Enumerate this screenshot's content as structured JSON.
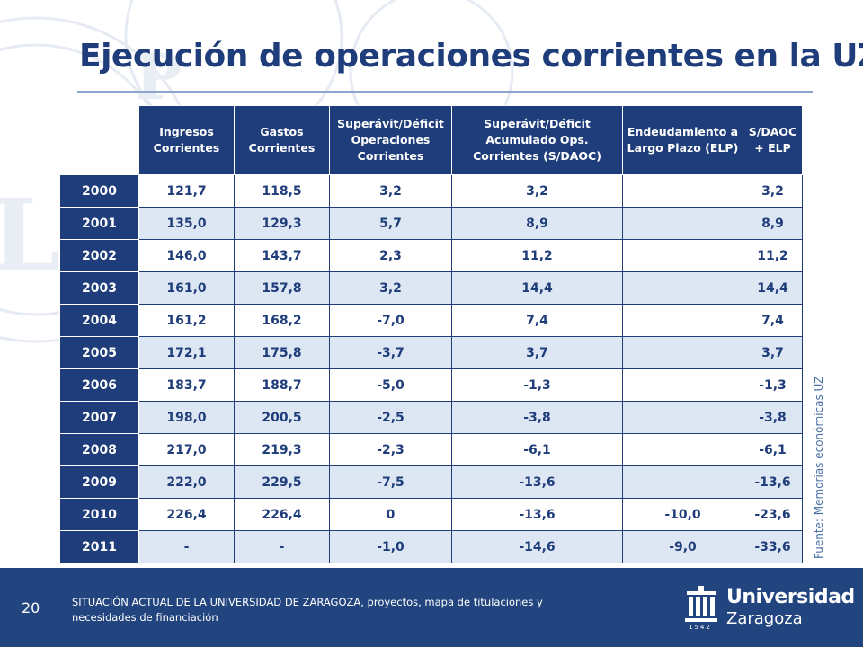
{
  "slide": {
    "title": "Ejecución de operaciones corrientes en la UZ",
    "page_number": "20",
    "footer_text": "SITUACIÓN ACTUAL DE LA UNIVERSIDAD DE ZARAGOZA, proyectos, mapa de titulaciones y necesidades de financiación",
    "source_note": "Fuente: Memorias económicas UZ"
  },
  "logo": {
    "name": "Universidad",
    "city": "Zaragoza",
    "year": "1542"
  },
  "table": {
    "headers": [
      "Ingresos Corrientes",
      "Gastos Corrientes",
      "Superávit/Déficit Operaciones Corrientes",
      "Superávit/Déficit Acumulado Ops. Corrientes (S/DAOC)",
      "Endeudamiento a Largo Plazo (ELP)",
      "S/DAOC + ELP"
    ],
    "rows": [
      {
        "year": "2000",
        "cells": [
          "121,7",
          "118,5",
          "3,2",
          "3,2",
          "",
          "3,2"
        ]
      },
      {
        "year": "2001",
        "cells": [
          "135,0",
          "129,3",
          "5,7",
          "8,9",
          "",
          "8,9"
        ]
      },
      {
        "year": "2002",
        "cells": [
          "146,0",
          "143,7",
          "2,3",
          "11,2",
          "",
          "11,2"
        ]
      },
      {
        "year": "2003",
        "cells": [
          "161,0",
          "157,8",
          "3,2",
          "14,4",
          "",
          "14,4"
        ]
      },
      {
        "year": "2004",
        "cells": [
          "161,2",
          "168,2",
          "-7,0",
          "7,4",
          "",
          "7,4"
        ]
      },
      {
        "year": "2005",
        "cells": [
          "172,1",
          "175,8",
          "-3,7",
          "3,7",
          "",
          "3,7"
        ]
      },
      {
        "year": "2006",
        "cells": [
          "183,7",
          "188,7",
          "-5,0",
          "-1,3",
          "",
          "-1,3"
        ]
      },
      {
        "year": "2007",
        "cells": [
          "198,0",
          "200,5",
          "-2,5",
          "-3,8",
          "",
          "-3,8"
        ]
      },
      {
        "year": "2008",
        "cells": [
          "217,0",
          "219,3",
          "-2,3",
          "-6,1",
          "",
          "-6,1"
        ]
      },
      {
        "year": "2009",
        "cells": [
          "222,0",
          "229,5",
          "-7,5",
          "-13,6",
          "",
          "-13,6"
        ]
      },
      {
        "year": "2010",
        "cells": [
          "226,4",
          "226,4",
          "0",
          "-13,6",
          "-10,0",
          "-23,6"
        ]
      },
      {
        "year": "2011",
        "cells": [
          "-",
          "-",
          "-1,0",
          "-14,6",
          "-9,0",
          "-33,6"
        ]
      }
    ]
  },
  "colors": {
    "primary": "#1f3d7a",
    "row_alt": "#dde6f3",
    "footer": "#22457f"
  }
}
